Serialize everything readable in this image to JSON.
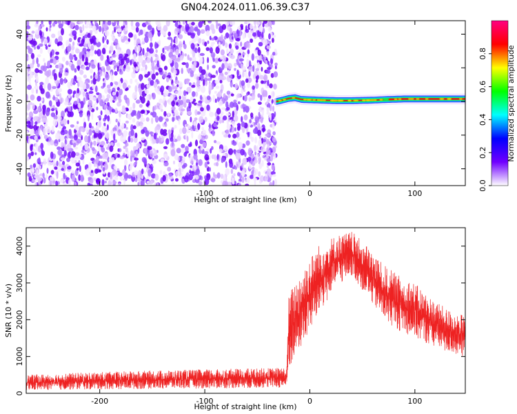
{
  "figure": {
    "title": "GN04.2024.011.06.39.C37"
  },
  "chart_data": [
    {
      "type": "heatmap",
      "title": "GN04.2024.011.06.39.C37",
      "xlabel": "Height of straight line (km)",
      "ylabel": "Frequency (Hz)",
      "xlim": [
        -270,
        148
      ],
      "ylim": [
        -50,
        48
      ],
      "x_ticks": [
        -200,
        -100,
        0,
        100
      ],
      "y_ticks": [
        -40,
        -20,
        0,
        20,
        40
      ],
      "noise_region_x": [
        -270,
        -32
      ],
      "signal_line": [
        [
          -32,
          0.0
        ],
        [
          -28,
          0.5
        ],
        [
          -20,
          1.8
        ],
        [
          -14,
          2.2
        ],
        [
          -8,
          1.2
        ],
        [
          0,
          1.0
        ],
        [
          10,
          0.8
        ],
        [
          25,
          0.5
        ],
        [
          40,
          0.5
        ],
        [
          60,
          0.8
        ],
        [
          75,
          1.2
        ],
        [
          90,
          1.5
        ],
        [
          105,
          1.5
        ],
        [
          120,
          1.5
        ],
        [
          148,
          1.5
        ]
      ],
      "colorbar": {
        "label": "Normalized spectral amplitude",
        "range": [
          0,
          1
        ],
        "ticks": [
          "0.0",
          "0.2",
          "0.4",
          "0.6",
          "0.8"
        ],
        "colors": [
          "#ffffff",
          "#7000ff",
          "#0000ff",
          "#00ffff",
          "#00ff00",
          "#ffff00",
          "#ff0000",
          "#ff0080"
        ]
      },
      "grid": false
    },
    {
      "type": "line",
      "xlabel": "Height of straight line (km)",
      "ylabel": "SNR (10 * v/v)",
      "xlim": [
        -270,
        148
      ],
      "ylim": [
        0,
        4500
      ],
      "x_ticks": [
        -200,
        -100,
        0,
        100
      ],
      "y_ticks": [
        0,
        1000,
        2000,
        3000,
        4000
      ],
      "color": "#ee2222",
      "grid": false,
      "envelope": {
        "x": [
          -270,
          -220,
          -150,
          -100,
          -50,
          -22,
          -20,
          -15,
          -5,
          10,
          25,
          40,
          55,
          70,
          85,
          100,
          115,
          130,
          148
        ],
        "low": [
          80,
          100,
          120,
          130,
          140,
          150,
          600,
          900,
          1400,
          2200,
          2900,
          3200,
          2600,
          2000,
          1700,
          1500,
          1300,
          1100,
          1000
        ],
        "high": [
          500,
          560,
          620,
          650,
          680,
          700,
          2700,
          3000,
          3500,
          4100,
          4300,
          4400,
          4000,
          3500,
          3200,
          3000,
          2600,
          2300,
          2100
        ]
      }
    }
  ]
}
